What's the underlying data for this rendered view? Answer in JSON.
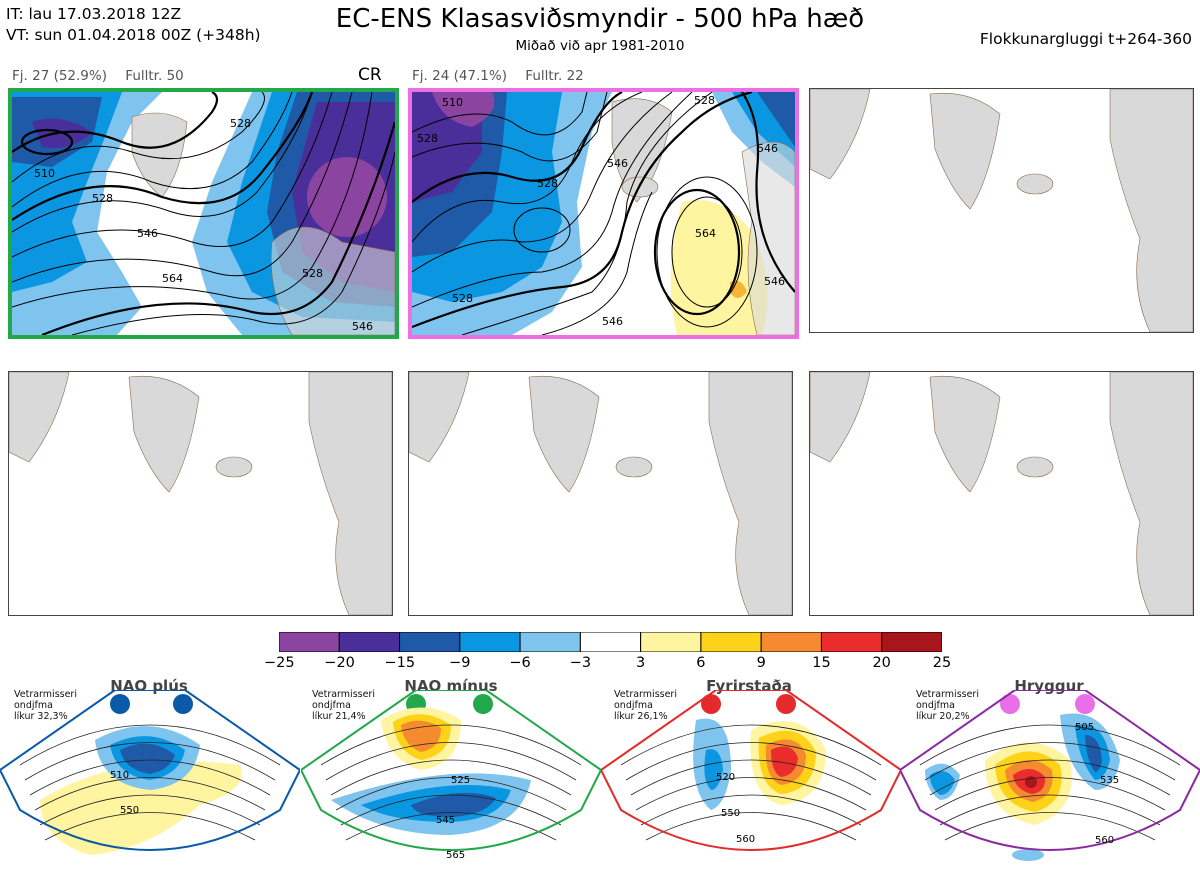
{
  "header": {
    "it": "IT: lau 17.03.2018 12Z",
    "vt": "VT: sun 01.04.2018 00Z  (+348h)",
    "title": "EC-ENS Klasasviðsmyndir - 500 hPa hæð",
    "subtitle": "Miðað við apr 1981-2010",
    "window": "Flokkunargluggi t+264-360"
  },
  "clusters": [
    {
      "count": "Fj. 27 (52.9%)",
      "rep": "Fulltr. 50",
      "regime_code": "CR",
      "border_color": "#22a84a",
      "contour_labels": [
        "510",
        "528",
        "528",
        "546",
        "564",
        "528",
        "546"
      ]
    },
    {
      "count": "Fj. 24 (47.1%)",
      "rep": "Fulltr. 22",
      "border_color": "#ee6ee6",
      "contour_labels": [
        "510",
        "528",
        "528",
        "546",
        "528",
        "546",
        "564",
        "528",
        "546",
        "546"
      ]
    }
  ],
  "colorbar": {
    "colors": [
      "#8b45a0",
      "#4a2e9a",
      "#1e5aa8",
      "#0a96e0",
      "#7fc4ee",
      "#ffffff",
      "#fff4a0",
      "#ffd21a",
      "#f58a2e",
      "#ea2c2c",
      "#a8151c"
    ],
    "ticks": [
      "−25",
      "−20",
      "−15",
      "−9",
      "−6",
      "−3",
      "3",
      "6",
      "9",
      "15",
      "20",
      "25"
    ]
  },
  "regimes": [
    {
      "name": "NAO plús",
      "color": "#0b5aa8",
      "info": [
        "Vetrarmisseri",
        "ondjfma",
        "líkur 32,3%"
      ],
      "labels": [
        "510",
        "550"
      ]
    },
    {
      "name": "NAO mínus",
      "color": "#22a84a",
      "info": [
        "Vetrarmisseri",
        "ondjfma",
        "líkur 21,4%"
      ],
      "labels": [
        "525",
        "545",
        "565"
      ]
    },
    {
      "name": "Fyrirstaða",
      "color": "#e32b2b",
      "info": [
        "Vetrarmisseri",
        "ondjfma",
        "líkur 26,1%"
      ],
      "labels": [
        "520",
        "550",
        "560"
      ]
    },
    {
      "name": "Hryggur",
      "color": "#ea6ee8",
      "info": [
        "Vetrarmisseri",
        "ondjfma",
        "líkur 20,2%"
      ],
      "labels": [
        "505",
        "535",
        "560"
      ]
    }
  ]
}
